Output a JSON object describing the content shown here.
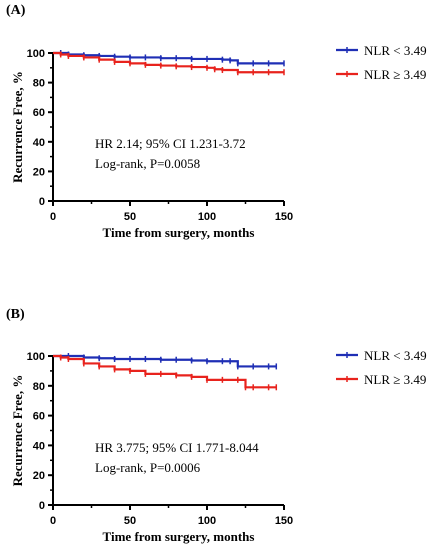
{
  "chart_data": [
    {
      "type": "line",
      "panel_label": "(A)",
      "ylabel": "Recurrence Free, %",
      "xlabel": "Time from surgery, months",
      "xlim": [
        0,
        150
      ],
      "ylim": [
        0,
        100
      ],
      "xticks": [
        "0",
        "50",
        "100",
        "150"
      ],
      "yticks": [
        "0",
        "20",
        "40",
        "60",
        "80",
        "100"
      ],
      "annotations": [
        "HR 2.14; 95% CI 1.231-3.72",
        "Log-rank, P=0.0058"
      ],
      "legend_position": "top-right",
      "series": [
        {
          "name": "NLR < 3.49",
          "color": "#1f2fb5",
          "x": [
            0,
            5,
            10,
            20,
            30,
            40,
            50,
            60,
            70,
            80,
            90,
            100,
            110,
            115,
            120,
            130,
            140,
            150
          ],
          "y": [
            100,
            100,
            99,
            98.5,
            98,
            97.5,
            97,
            97,
            96.5,
            96.5,
            96,
            96,
            95.5,
            95,
            93,
            93,
            93,
            93
          ]
        },
        {
          "name": "NLR ≥ 3.49",
          "color": "#e8231d",
          "x": [
            0,
            5,
            10,
            20,
            30,
            40,
            50,
            60,
            70,
            80,
            90,
            100,
            105,
            110,
            120,
            130,
            140,
            150
          ],
          "y": [
            100,
            99,
            98,
            97,
            95.5,
            94,
            93,
            92,
            91.5,
            91,
            90.5,
            90,
            89,
            88.5,
            87,
            87,
            87,
            87
          ]
        }
      ]
    },
    {
      "type": "line",
      "panel_label": "(B)",
      "ylabel": "Recurrence Free, %",
      "xlabel": "Time from surgery, months",
      "xlim": [
        0,
        150
      ],
      "ylim": [
        0,
        100
      ],
      "xticks": [
        "0",
        "50",
        "100",
        "150"
      ],
      "yticks": [
        "0",
        "20",
        "40",
        "60",
        "80",
        "100"
      ],
      "annotations": [
        "HR 3.775; 95% CI 1.771-8.044",
        "Log-rank, P=0.0006"
      ],
      "legend_position": "top-right",
      "series": [
        {
          "name": "NLR < 3.49",
          "color": "#1f2fb5",
          "x": [
            0,
            10,
            20,
            30,
            40,
            50,
            60,
            70,
            80,
            90,
            100,
            110,
            115,
            120,
            130,
            140,
            145
          ],
          "y": [
            100,
            100,
            99,
            98.5,
            98,
            98,
            98,
            97.5,
            97.5,
            97,
            96.5,
            96.5,
            96.5,
            93,
            93,
            93,
            93
          ]
        },
        {
          "name": "NLR ≥ 3.49",
          "color": "#e8231d",
          "x": [
            0,
            5,
            10,
            20,
            30,
            40,
            50,
            60,
            70,
            80,
            90,
            100,
            110,
            120,
            125,
            130,
            140,
            145
          ],
          "y": [
            100,
            99,
            98,
            95,
            93,
            91,
            90,
            88,
            88,
            87,
            86,
            84,
            84,
            84,
            79,
            79,
            79,
            79
          ]
        }
      ]
    }
  ]
}
